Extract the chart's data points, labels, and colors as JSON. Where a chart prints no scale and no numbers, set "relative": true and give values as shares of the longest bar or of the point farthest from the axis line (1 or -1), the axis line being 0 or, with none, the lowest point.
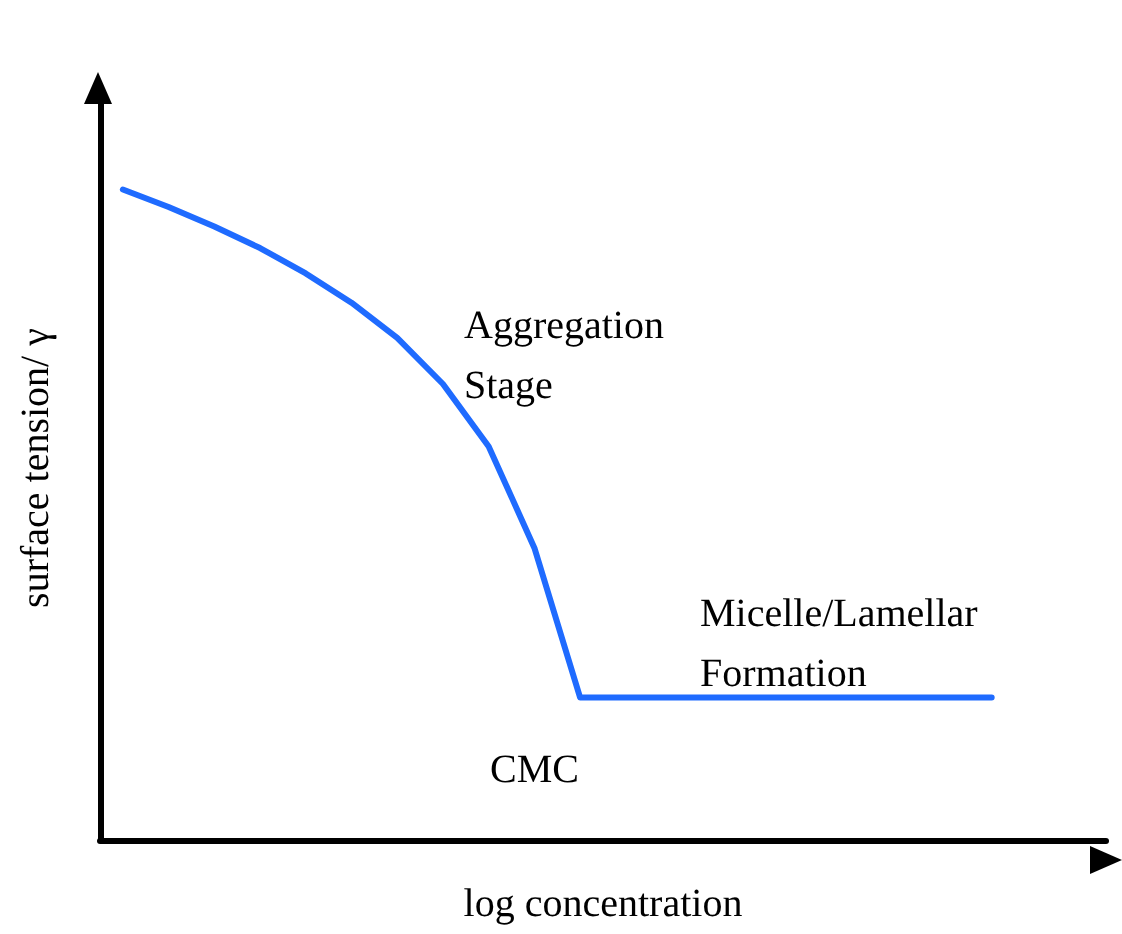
{
  "chart_data": {
    "type": "line",
    "relative": true,
    "xlabel": "log concentration",
    "ylabel": "surface tension/ γ",
    "color": "#1f6bff",
    "marker": "none",
    "grid": false,
    "categories": [
      null,
      null,
      null,
      null,
      null,
      null,
      null,
      null,
      null,
      null,
      null,
      null,
      null,
      null,
      null,
      null,
      null,
      null,
      null,
      null,
      null,
      null
    ],
    "values": [
      1,
      0.973,
      0.943,
      0.91,
      0.871,
      0.826,
      0.772,
      0.701,
      0.605,
      0.449,
      0.219,
      0.219,
      0.219,
      0.219,
      0.219,
      0.219,
      0.219,
      0.219,
      0.219,
      0.219,
      null,
      null
    ],
    "annotations": [
      "Aggregation Stage",
      "Micelle/Lamellar Formation",
      "CMC"
    ]
  }
}
